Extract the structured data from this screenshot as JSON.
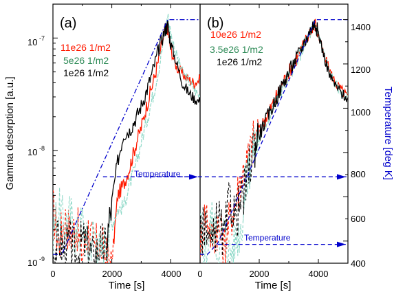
{
  "colors": {
    "high": "#ff1a00",
    "mid": "#2e8b57",
    "low": "#000000",
    "temperature": "#0000cc",
    "dashed_faint": "#8fd9c8"
  },
  "left_axis": {
    "label": "Gamma desorption [a.u.]",
    "ticks": [
      "10",
      "10",
      "10"
    ],
    "exponents": [
      "-9",
      "-8",
      "-7"
    ]
  },
  "right_axis": {
    "label": "Temperature [deg K]",
    "ticks": [
      "400",
      "600",
      "800",
      "1000",
      "1200",
      "1400"
    ]
  },
  "chart_data": [
    {
      "type": "line",
      "panel_label": "(a)",
      "xlabel": "Time [s]",
      "ylabel": "Gamma desorption [a.u.]",
      "xlim": [
        0,
        5000
      ],
      "ylim": [
        1e-09,
        2e-07
      ],
      "yscale": "log",
      "x_ticks": [
        "0",
        "2000",
        "4000"
      ],
      "legend": [
        "11e26 1/m2",
        "5e26 1/m2",
        "1e26 1/m2"
      ],
      "annotation": "Temperature",
      "series": [
        {
          "name": "11e26 1/m2",
          "color": "high",
          "x": [
            0,
            200,
            400,
            600,
            800,
            1000,
            1200,
            1400,
            1600,
            1800,
            2000,
            2200,
            2400,
            2600,
            2800,
            3000,
            3200,
            3400,
            3600,
            3800,
            3900,
            4000,
            4200,
            4400,
            4600,
            4800,
            5000
          ],
          "y": [
            3e-09,
            1.5e-09,
            2.5e-09,
            1.8e-09,
            2.2e-09,
            1.2e-09,
            2e-09,
            1.3e-09,
            1.6e-09,
            1.1e-09,
            1e-09,
            4e-09,
            5e-09,
            7e-09,
            1.1e-08,
            1.6e-08,
            2.6e-08,
            4e-08,
            6.5e-08,
            1.15e-07,
            1.25e-07,
            8e-08,
            5.5e-08,
            4.8e-08,
            4.3e-08,
            4e-08,
            4.3e-08
          ]
        },
        {
          "name": "5e26 1/m2",
          "color": "mid",
          "x": [
            0,
            200,
            400,
            600,
            800,
            1000,
            1200,
            1400,
            1600,
            1800,
            2000,
            2200,
            2400,
            2600,
            2800,
            3000,
            3200,
            3400,
            3600,
            3800,
            3900,
            4000,
            4200,
            4400,
            4600,
            4800,
            5000
          ],
          "y": [
            2e-09,
            3e-09,
            2.2e-09,
            2.7e-09,
            1.6e-09,
            2.4e-09,
            1.3e-09,
            2e-09,
            1.2e-09,
            1.6e-09,
            2.2e-09,
            3e-09,
            3.2e-09,
            5e-09,
            7e-09,
            1.2e-08,
            1.9e-08,
            3.1e-08,
            5.5e-08,
            1.1e-07,
            1.55e-07,
            1.1e-07,
            7e-08,
            5e-08,
            4.2e-08,
            3.5e-08,
            3e-08
          ]
        },
        {
          "name": "1e26 1/m2",
          "color": "low",
          "x": [
            0,
            200,
            400,
            600,
            800,
            1000,
            1200,
            1400,
            1600,
            1800,
            2000,
            2200,
            2400,
            2600,
            2800,
            3000,
            3200,
            3400,
            3600,
            3800,
            3900,
            4000,
            4200,
            4400,
            4600,
            4800,
            5000
          ],
          "y": [
            1.2e-09,
            1.6e-09,
            1.3e-09,
            1.5e-09,
            1.1e-09,
            1.6e-09,
            1.3e-09,
            1.1e-09,
            1.5e-09,
            1.3e-09,
            3.5e-09,
            8e-09,
            1.4e-08,
            1.5e-08,
            1.9e-08,
            2.5e-08,
            3.5e-08,
            5.2e-08,
            8e-08,
            1.18e-07,
            1.3e-07,
            9e-08,
            6e-08,
            4e-08,
            3.3e-08,
            2.9e-08,
            2.7e-08
          ]
        },
        {
          "name": "temperature",
          "color": "temperature",
          "axis": "right",
          "x": [
            0,
            300,
            3900,
            4000,
            4500,
            5000
          ],
          "y": [
            340,
            340,
            1400,
            1400,
            1400,
            1400
          ]
        },
        {
          "name": "temperature-arrow",
          "color": "temperature",
          "axis": "right",
          "x": [
            1700,
            5000
          ],
          "y": [
            690,
            690
          ]
        }
      ]
    },
    {
      "type": "line",
      "panel_label": "(b)",
      "xlabel": "Time [s]",
      "ylabel": "Temperature [deg K]",
      "xlim": [
        0,
        5000
      ],
      "ylim": [
        300,
        1470
      ],
      "x_ticks": [
        "0",
        "2000",
        "4000"
      ],
      "legend": [
        "10e26 1/m2",
        "3.5e26 1/m2",
        "1e26 1/m2"
      ],
      "annotation": "Temperature",
      "series": [
        {
          "name": "10e26 1/m2",
          "color": "high",
          "x": [
            0,
            200,
            400,
            600,
            800,
            1000,
            1200,
            1400,
            1600,
            1800,
            2000,
            2200,
            2400,
            2600,
            2800,
            3000,
            3200,
            3400,
            3600,
            3800,
            3900,
            4000,
            4200,
            4400,
            4600,
            4800,
            5000
          ],
          "y": [
            1.5e-09,
            3e-09,
            1.6e-09,
            2.2e-09,
            1.4e-09,
            2.4e-09,
            3.5e-09,
            6e-09,
            8e-09,
            1.2e-08,
            1.5e-08,
            1.9e-08,
            2.4e-08,
            3.1e-08,
            4e-08,
            5e-08,
            6.2e-08,
            7.6e-08,
            9.8e-08,
            1.28e-07,
            1.32e-07,
            1.05e-07,
            6.8e-08,
            5e-08,
            3.9e-08,
            3.4e-08,
            3e-08
          ]
        },
        {
          "name": "3.5e26 1/m2",
          "color": "mid",
          "x": [
            0,
            200,
            400,
            600,
            800,
            1000,
            1200,
            1400,
            1600,
            1800,
            2000,
            2200,
            2400,
            2600,
            2800,
            3000,
            3200,
            3400,
            3600,
            3800,
            3900,
            4000,
            4200,
            4400,
            4600,
            4800,
            5000
          ],
          "y": [
            2e-09,
            1.2e-09,
            2.6e-09,
            1.3e-09,
            2e-09,
            1.2e-09,
            1.6e-09,
            2.2e-09,
            6e-09,
            1e-08,
            1.3e-08,
            1.7e-08,
            2.2e-08,
            2.9e-08,
            3.7e-08,
            4.6e-08,
            5.8e-08,
            7.4e-08,
            9.6e-08,
            1.22e-07,
            1.3e-07,
            1.08e-07,
            7e-08,
            4.8e-08,
            3.8e-08,
            3.2e-08,
            3e-08
          ]
        },
        {
          "name": "1e26 1/m2",
          "color": "low",
          "x": [
            0,
            200,
            400,
            600,
            800,
            1000,
            1200,
            1400,
            1600,
            1800,
            2000,
            2200,
            2400,
            2600,
            2800,
            3000,
            3200,
            3400,
            3600,
            3800,
            3900,
            4000,
            4200,
            4400,
            4600,
            4800,
            5000
          ],
          "y": [
            1.6e-09,
            2.6e-09,
            1.3e-09,
            2.8e-09,
            1.5e-09,
            3.8e-09,
            2.6e-09,
            3.5e-09,
            5.5e-09,
            1.1e-08,
            1.4e-08,
            1.8e-08,
            2.3e-08,
            3e-08,
            3.9e-08,
            5e-08,
            6.2e-08,
            7.8e-08,
            1e-07,
            1.28e-07,
            1.34e-07,
            1.1e-07,
            6.8e-08,
            4.5e-08,
            3.7e-08,
            3.2e-08,
            2.9e-08
          ]
        },
        {
          "name": "temperature",
          "color": "temperature",
          "axis": "right",
          "x": [
            0,
            250,
            600,
            3900,
            4000,
            4500,
            5000
          ],
          "y": [
            340,
            340,
            390,
            1400,
            1400,
            1400,
            1400
          ]
        },
        {
          "name": "temperature-arrow",
          "color": "temperature",
          "axis": "right",
          "x": [
            600,
            5000
          ],
          "y": [
            385,
            385
          ]
        },
        {
          "name": "temperature-arrow-upper",
          "color": "temperature",
          "axis": "right",
          "x": [
            -1700,
            5000
          ],
          "y": [
            690,
            690
          ]
        }
      ]
    }
  ]
}
